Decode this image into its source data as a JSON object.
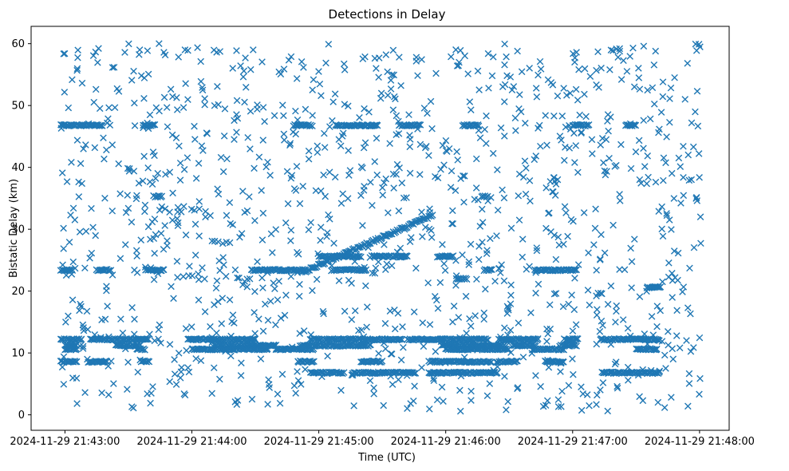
{
  "chart_data": {
    "type": "scatter",
    "title": "Detections in Delay",
    "xlabel": "Time (UTC)",
    "ylabel": "Bistatic Delay (km)",
    "marker": "x",
    "marker_color": "#1f77b4",
    "grid": false,
    "legend": "none",
    "x_unit": "seconds since 2024-11-29 21:42:00 UTC",
    "xlim": [
      44,
      374
    ],
    "ylim": [
      -2.5,
      62.8
    ],
    "x_ticks": [
      {
        "value": 60,
        "label": "2024-11-29 21:43:00"
      },
      {
        "value": 120,
        "label": "2024-11-29 21:44:00"
      },
      {
        "value": 180,
        "label": "2024-11-29 21:45:00"
      },
      {
        "value": 240,
        "label": "2024-11-29 21:46:00"
      },
      {
        "value": 300,
        "label": "2024-11-29 21:47:00"
      },
      {
        "value": 360,
        "label": "2024-11-29 21:48:00"
      }
    ],
    "y_ticks": [
      {
        "value": 0,
        "label": "0"
      },
      {
        "value": 10,
        "label": "10"
      },
      {
        "value": 20,
        "label": "20"
      },
      {
        "value": 30,
        "label": "30"
      },
      {
        "value": 40,
        "label": "40"
      },
      {
        "value": 50,
        "label": "50"
      },
      {
        "value": 60,
        "label": "60"
      }
    ],
    "clutter_bands": [
      {
        "delay": 46.8,
        "segments": [
          [
            58,
            78
          ],
          [
            97,
            103
          ],
          [
            168,
            177
          ],
          [
            188,
            208
          ],
          [
            218,
            228
          ],
          [
            248,
            256
          ],
          [
            300,
            308
          ],
          [
            325,
            330
          ]
        ]
      },
      {
        "delay": 12.2,
        "segments": [
          [
            58,
            68
          ],
          [
            72,
            100
          ],
          [
            118,
            150
          ],
          [
            176,
            220
          ],
          [
            222,
            260
          ],
          [
            265,
            284
          ],
          [
            296,
            303
          ],
          [
            313,
            341
          ]
        ]
      },
      {
        "delay": 11.2,
        "segments": [
          [
            60,
            66
          ],
          [
            84,
            96
          ],
          [
            130,
            160
          ],
          [
            172,
            205
          ],
          [
            238,
            268
          ],
          [
            272,
            283
          ],
          [
            294,
            302
          ]
        ]
      },
      {
        "delay": 10.6,
        "segments": [
          [
            60,
            66
          ],
          [
            94,
            98
          ],
          [
            120,
            156
          ],
          [
            160,
            178
          ],
          [
            240,
            270
          ],
          [
            281,
            296
          ],
          [
            330,
            340
          ]
        ]
      },
      {
        "delay": 8.6,
        "segments": [
          [
            58,
            66
          ],
          [
            71,
            80
          ],
          [
            96,
            100
          ],
          [
            170,
            178
          ],
          [
            200,
            210
          ],
          [
            232,
            262
          ],
          [
            264,
            274
          ],
          [
            287,
            296
          ]
        ]
      },
      {
        "delay": 6.8,
        "segments": [
          [
            176,
            192
          ],
          [
            196,
            226
          ],
          [
            232,
            265
          ],
          [
            314,
            341
          ]
        ]
      },
      {
        "delay": 23.4,
        "segments": [
          [
            58,
            64
          ],
          [
            75,
            82
          ],
          [
            98,
            107
          ],
          [
            148,
            174
          ],
          [
            186,
            203
          ],
          [
            258,
            262
          ],
          [
            282,
            302
          ]
        ]
      },
      {
        "delay": 25.6,
        "segments": [
          [
            180,
            200
          ],
          [
            206,
            222
          ],
          [
            236,
            244
          ]
        ]
      },
      {
        "delay": 20.6,
        "segments": [
          [
            335,
            342
          ]
        ]
      },
      {
        "delay": 22.0,
        "segments": [
          [
            245,
            250
          ]
        ]
      },
      {
        "delay": 35.3,
        "segments": [
          [
            257,
            260
          ],
          [
            102,
            106
          ]
        ]
      }
    ],
    "target_track": {
      "from": [
        172,
        23.0
      ],
      "to": [
        234,
        32.3
      ]
    }
  }
}
